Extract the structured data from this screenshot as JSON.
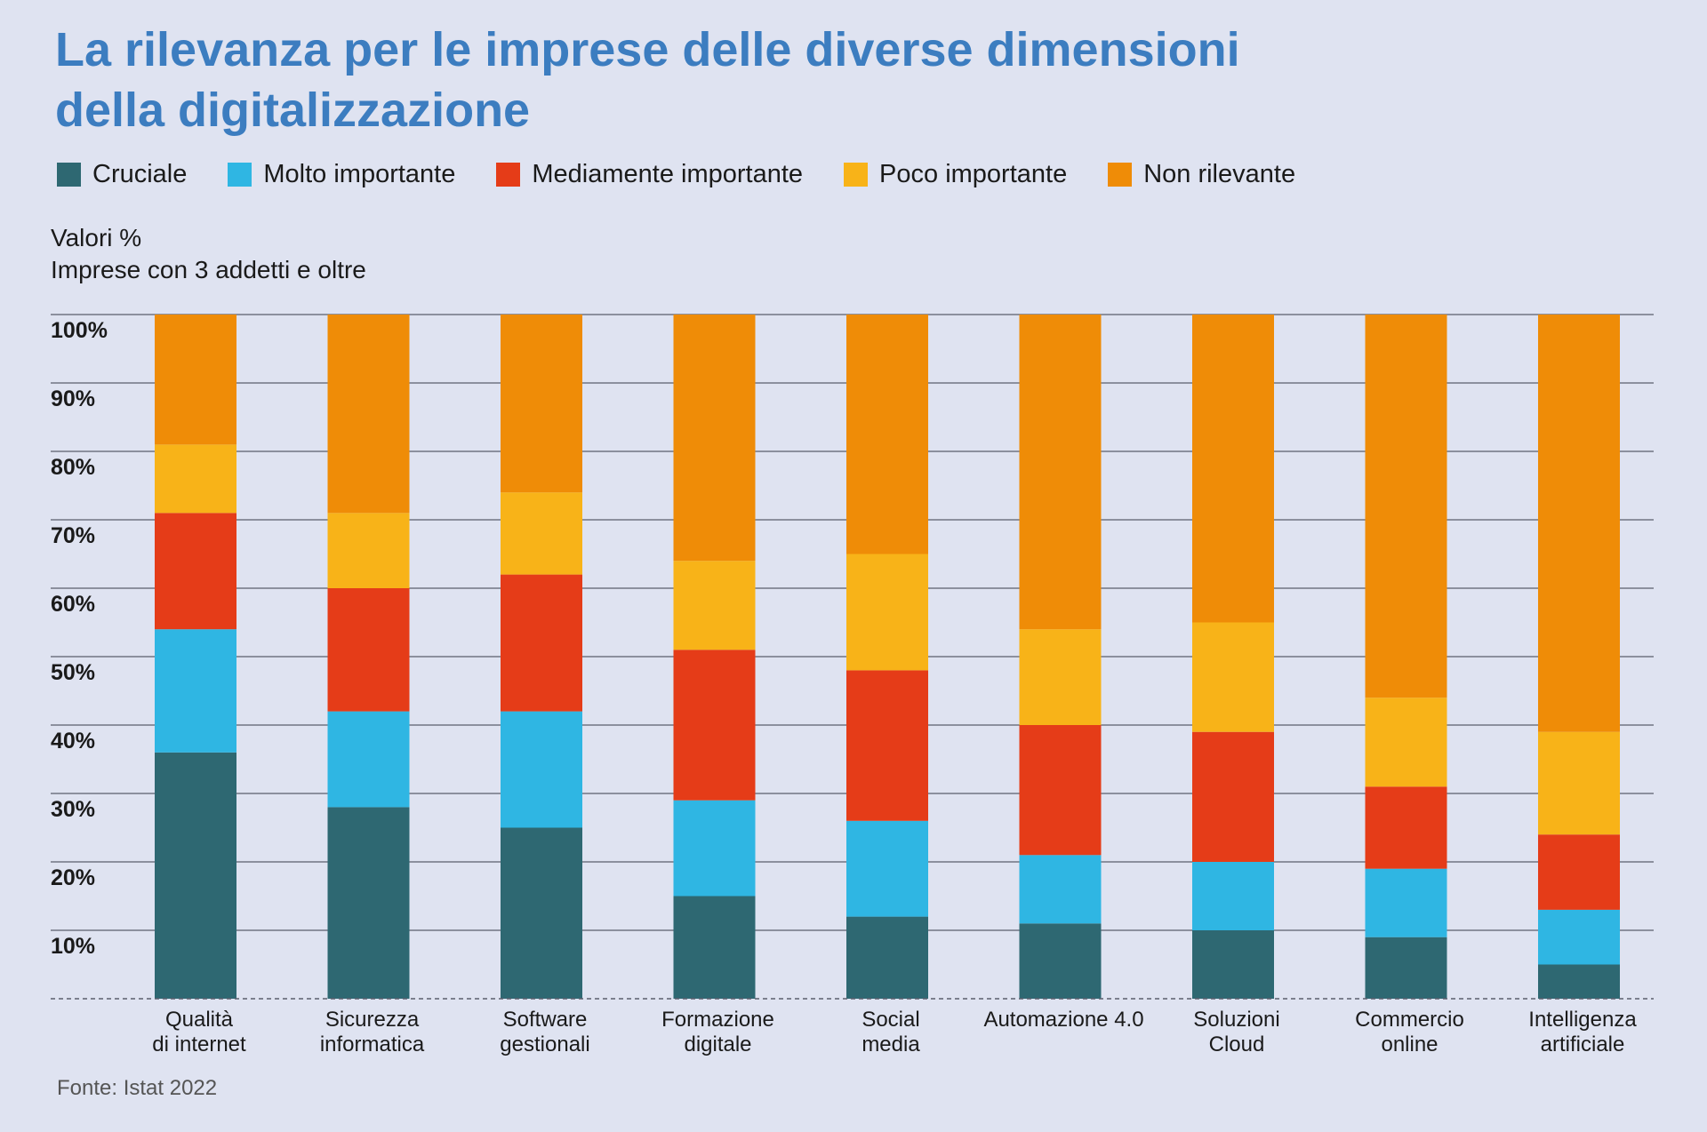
{
  "header": {
    "title_line1": "La rilevanza per le imprese delle diverse dimensioni",
    "title_line2": "della digitalizzazione",
    "subtitle_line1": "Valori %",
    "subtitle_line2": "Imprese con 3 addetti e oltre",
    "source": "Fonte: Istat 2022"
  },
  "colors": {
    "Cruciale": "#2e6872",
    "Molto importante": "#2fb6e3",
    "Mediamente importante": "#e53c18",
    "Poco importante": "#f8b318",
    "Non rilevante": "#ef8c07",
    "title": "#3c7dc0",
    "background": "#dfe3f1"
  },
  "chart_data": {
    "type": "bar",
    "stacked": true,
    "title": "La rilevanza per le imprese delle diverse dimensioni della digitalizzazione",
    "ylabel": "Valori %",
    "xlabel": "",
    "ylim": [
      0,
      100
    ],
    "yticks": [
      "10%",
      "20%",
      "30%",
      "40%",
      "50%",
      "60%",
      "70%",
      "80%",
      "90%",
      "100%"
    ],
    "grid": true,
    "legend_position": "top-left",
    "categories": [
      [
        "Qualità",
        "di internet"
      ],
      [
        "Sicurezza",
        "informatica"
      ],
      [
        "Software",
        "gestionali"
      ],
      [
        "Formazione",
        "digitale"
      ],
      [
        "Social",
        "media"
      ],
      [
        "Automazione 4.0"
      ],
      [
        "Soluzioni",
        "Cloud"
      ],
      [
        "Commercio",
        "online"
      ],
      [
        "Intelligenza",
        "artificiale"
      ]
    ],
    "series": [
      {
        "name": "Cruciale",
        "values": [
          36,
          28,
          25,
          15,
          12,
          11,
          10,
          9,
          5
        ]
      },
      {
        "name": "Molto importante",
        "values": [
          18,
          14,
          17,
          14,
          14,
          10,
          10,
          10,
          8
        ]
      },
      {
        "name": "Mediamente importante",
        "values": [
          17,
          18,
          20,
          22,
          22,
          19,
          19,
          12,
          11
        ]
      },
      {
        "name": "Poco importante",
        "values": [
          10,
          11,
          12,
          13,
          17,
          14,
          16,
          13,
          15
        ]
      },
      {
        "name": "Non rilevante",
        "values": [
          19,
          29,
          26,
          36,
          35,
          46,
          45,
          56,
          61
        ]
      }
    ]
  }
}
